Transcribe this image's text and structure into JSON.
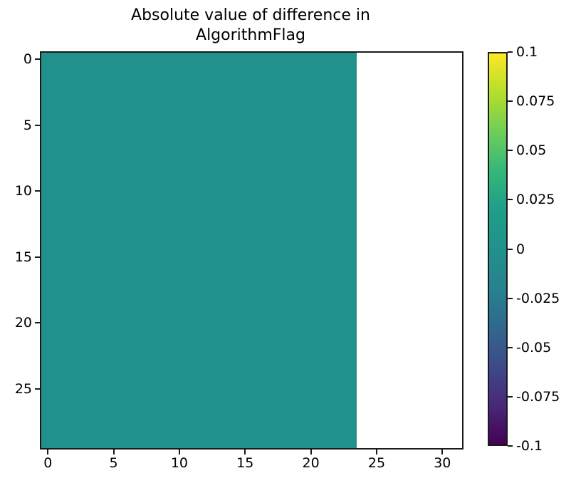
{
  "figure": {
    "title_line1": "Absolute value of difference in",
    "title_line2": "AlgorithmFlag",
    "background": "#ffffff",
    "text_color": "#000000"
  },
  "chart_data": {
    "type": "heatmap",
    "title": "Absolute value of difference in AlgorithmFlag",
    "grid": {
      "rows": 30,
      "cols": 32
    },
    "x_range": [
      -0.5,
      31.5
    ],
    "y_range": [
      -0.5,
      29.5
    ],
    "y_inverted": true,
    "x_ticks": {
      "values": [
        0,
        5,
        10,
        15,
        20,
        25,
        30
      ],
      "labels": [
        "0",
        "5",
        "10",
        "15",
        "20",
        "25",
        "30"
      ]
    },
    "y_ticks": {
      "values": [
        0,
        5,
        10,
        15,
        20,
        25
      ],
      "labels": [
        "0",
        "5",
        "10",
        "15",
        "20",
        "25"
      ]
    },
    "values_summary": "All cells in columns 0-23 have value 0 (rendered viridis mid teal); columns 24-31 are blank/NaN (rendered white) for all 30 rows.",
    "regions": [
      {
        "x_from": -0.5,
        "x_to": 23.5,
        "value": 0,
        "color": "#21918c",
        "label": "zero-difference region"
      },
      {
        "x_from": 23.5,
        "x_to": 31.5,
        "value": null,
        "color": "#ffffff",
        "label": "blank (NaN) region"
      }
    ],
    "colorbar": {
      "min": -0.1,
      "max": 0.1,
      "colormap": "viridis",
      "tick_values": [
        0.1,
        0.075,
        0.05,
        0.025,
        0,
        -0.025,
        -0.05,
        -0.075,
        -0.1
      ],
      "tick_labels": [
        "0.1",
        "0.075",
        "0.05",
        "0.025",
        "0",
        "-0.025",
        "-0.05",
        "-0.075",
        "-0.1"
      ],
      "gradient_stops_bottom_to_top": [
        "#440154",
        "#482878",
        "#3e4a89",
        "#31688e",
        "#26828e",
        "#21918c",
        "#1f9e89",
        "#35b779",
        "#6ece58",
        "#b5de2b",
        "#fde725"
      ]
    },
    "grid_lines": false,
    "legend": false
  }
}
